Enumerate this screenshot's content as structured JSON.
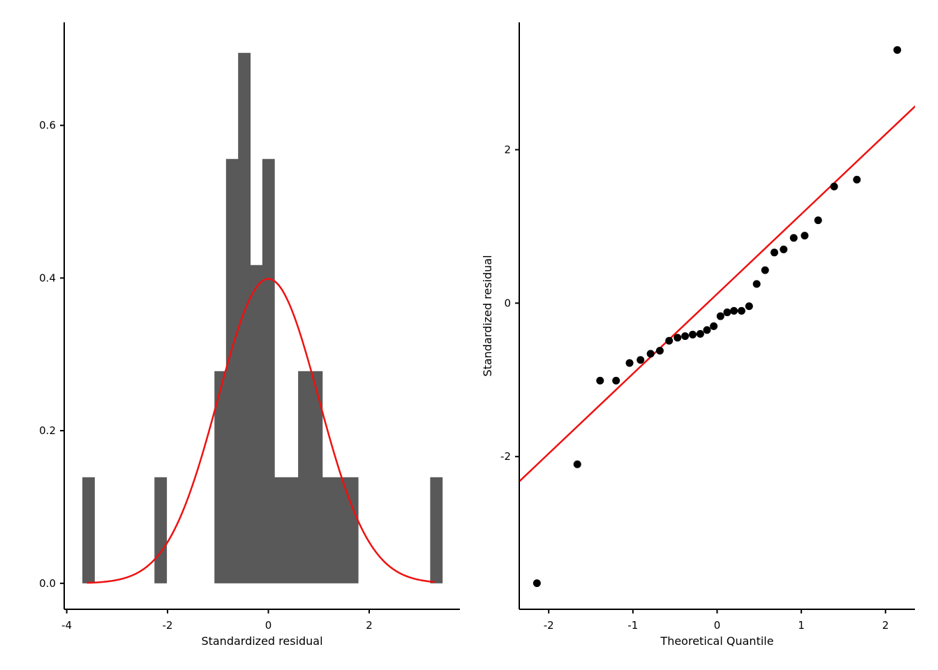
{
  "colors": {
    "bar_fill": "#595959",
    "density_line": "#ee1111",
    "reference_line": "#ee1111",
    "point": "#000000",
    "axis": "#000000"
  },
  "chart_data": [
    {
      "type": "histogram",
      "xlabel": "Standardized residual",
      "ylabel": "",
      "xlim": [
        -4.05,
        3.8
      ],
      "ylim": [
        -0.034,
        0.735
      ],
      "x_ticks": [
        -4,
        -2,
        0,
        2
      ],
      "x_tick_labels": [
        "-4",
        "-2",
        "0",
        "2"
      ],
      "y_ticks": [
        0.0,
        0.2,
        0.4,
        0.6
      ],
      "y_tick_labels": [
        "0.0",
        "0.2",
        "0.4",
        "0.6"
      ],
      "bin_width": 0.237,
      "bins": [
        {
          "x0": -3.69,
          "x1": -3.45,
          "density": 0.139
        },
        {
          "x0": -2.26,
          "x1": -2.02,
          "density": 0.139
        },
        {
          "x0": -1.07,
          "x1": -0.84,
          "density": 0.278
        },
        {
          "x0": -0.84,
          "x1": -0.6,
          "density": 0.556
        },
        {
          "x0": -0.6,
          "x1": -0.36,
          "density": 0.695
        },
        {
          "x0": -0.36,
          "x1": -0.12,
          "density": 0.417
        },
        {
          "x0": -0.12,
          "x1": 0.12,
          "density": 0.556
        },
        {
          "x0": 0.12,
          "x1": 0.59,
          "density": 0.139
        },
        {
          "x0": 0.59,
          "x1": 1.07,
          "density": 0.278
        },
        {
          "x0": 1.07,
          "x1": 1.78,
          "density": 0.139
        },
        {
          "x0": 3.21,
          "x1": 3.45,
          "density": 0.139
        }
      ],
      "density_curve": {
        "distribution": "normal",
        "mean": 0,
        "sd": 1,
        "x_range": [
          -3.6,
          3.3
        ]
      }
    },
    {
      "type": "scatter",
      "xlabel": "Theoretical Quantile",
      "ylabel": "Standardized residual",
      "xlim": [
        -2.35,
        2.35
      ],
      "ylim": [
        -3.99,
        3.66
      ],
      "x_ticks": [
        -2,
        -1,
        0,
        1,
        2
      ],
      "x_tick_labels": [
        "-2",
        "-1",
        "0",
        "1",
        "2"
      ],
      "y_ticks": [
        -2,
        0,
        2
      ],
      "y_tick_labels": [
        "-2",
        "0",
        "2"
      ],
      "points": [
        {
          "x": -2.14,
          "y": -3.65
        },
        {
          "x": -1.66,
          "y": -2.1
        },
        {
          "x": -1.39,
          "y": -1.01
        },
        {
          "x": -1.2,
          "y": -1.01
        },
        {
          "x": -1.04,
          "y": -0.78
        },
        {
          "x": -0.91,
          "y": -0.74
        },
        {
          "x": -0.79,
          "y": -0.66
        },
        {
          "x": -0.68,
          "y": -0.62
        },
        {
          "x": -0.57,
          "y": -0.49
        },
        {
          "x": -0.47,
          "y": -0.45
        },
        {
          "x": -0.38,
          "y": -0.43
        },
        {
          "x": -0.29,
          "y": -0.41
        },
        {
          "x": -0.2,
          "y": -0.4
        },
        {
          "x": -0.12,
          "y": -0.35
        },
        {
          "x": -0.04,
          "y": -0.3
        },
        {
          "x": 0.04,
          "y": -0.17
        },
        {
          "x": 0.12,
          "y": -0.12
        },
        {
          "x": 0.2,
          "y": -0.1
        },
        {
          "x": 0.29,
          "y": -0.1
        },
        {
          "x": 0.38,
          "y": -0.04
        },
        {
          "x": 0.47,
          "y": 0.25
        },
        {
          "x": 0.57,
          "y": 0.43
        },
        {
          "x": 0.68,
          "y": 0.66
        },
        {
          "x": 0.79,
          "y": 0.7
        },
        {
          "x": 0.91,
          "y": 0.85
        },
        {
          "x": 1.04,
          "y": 0.88
        },
        {
          "x": 1.2,
          "y": 1.08
        },
        {
          "x": 1.39,
          "y": 1.52
        },
        {
          "x": 1.66,
          "y": 1.61
        },
        {
          "x": 2.14,
          "y": 3.3
        }
      ],
      "reference_line": {
        "intercept": 0.12,
        "slope": 1.04
      }
    }
  ]
}
